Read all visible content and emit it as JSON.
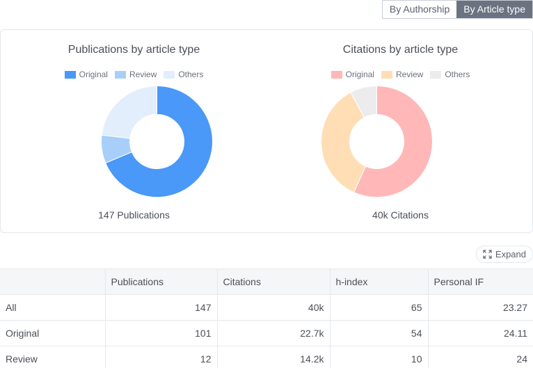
{
  "toggle": {
    "options": [
      "By Authorship",
      "By Article type"
    ],
    "active": "By Article type"
  },
  "chart_data": [
    {
      "type": "pie",
      "title": "Publications by article type",
      "categories": [
        "Original",
        "Review",
        "Others"
      ],
      "values": [
        101,
        12,
        34
      ],
      "colors": [
        "#4a98f7",
        "#a8cff9",
        "#e2eefc"
      ],
      "total_label": "147 Publications",
      "legend": "top"
    },
    {
      "type": "pie",
      "title": "Citations by article type",
      "categories": [
        "Original",
        "Review",
        "Others"
      ],
      "values": [
        22.7,
        14.2,
        3.1
      ],
      "colors": [
        "#ffb7b7",
        "#ffdeb5",
        "#ececec"
      ],
      "total_label": "40k Citations",
      "legend": "top"
    }
  ],
  "expand_label": "Expand",
  "table": {
    "headers": [
      "",
      "Publications",
      "Citations",
      "h-index",
      "Personal IF"
    ],
    "rows": [
      [
        "All",
        "147",
        "40k",
        "65",
        "23.27"
      ],
      [
        "Original",
        "101",
        "22.7k",
        "54",
        "24.11"
      ],
      [
        "Review",
        "12",
        "14.2k",
        "10",
        "24"
      ]
    ]
  }
}
